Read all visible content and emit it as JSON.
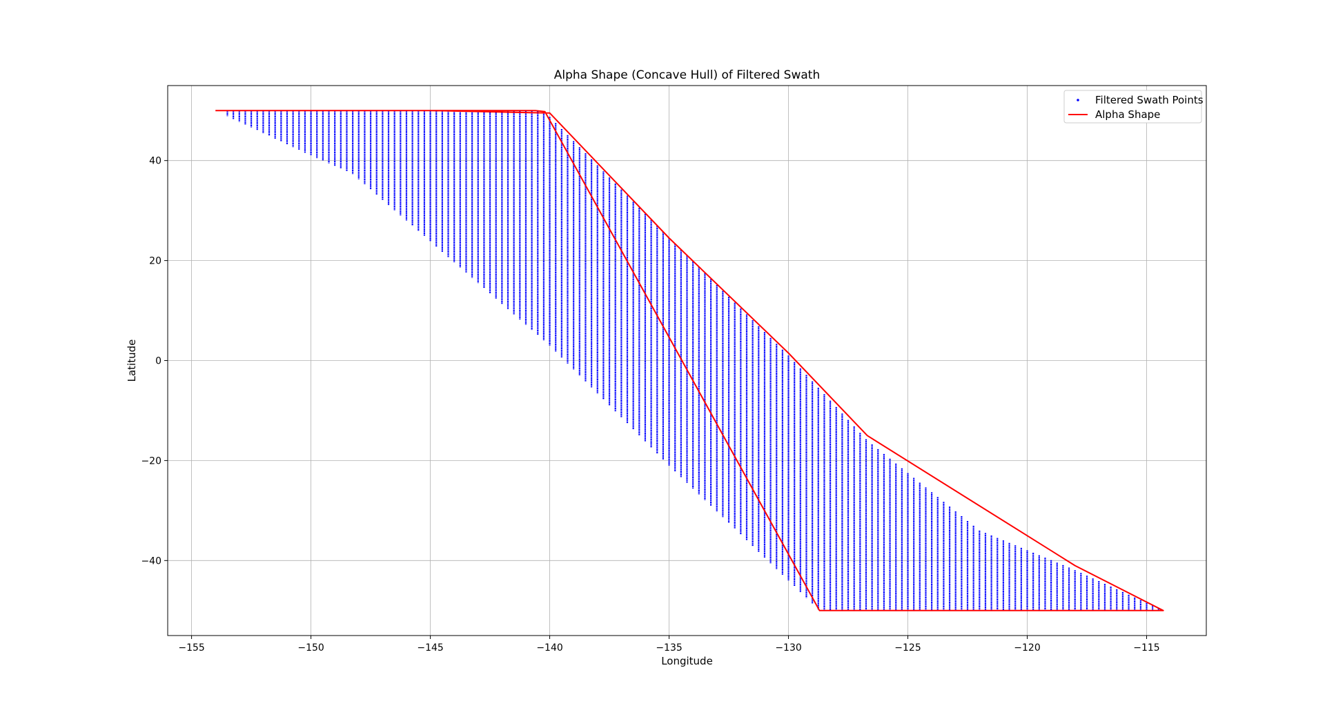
{
  "chart_data": {
    "type": "scatter",
    "title": "Alpha Shape (Concave Hull) of Filtered Swath",
    "xlabel": "Longitude",
    "ylabel": "Latitude",
    "xlim": [
      -156,
      -112.5
    ],
    "ylim": [
      -55,
      55
    ],
    "xticks": [
      -155,
      -150,
      -145,
      -140,
      -135,
      -130,
      -125,
      -120,
      -115
    ],
    "yticks": [
      -40,
      -20,
      0,
      20,
      40
    ],
    "xtick_labels": [
      "−155",
      "−150",
      "−145",
      "−140",
      "−135",
      "−130",
      "−125",
      "−120",
      "−115"
    ],
    "ytick_labels": [
      "−40",
      "−20",
      "0",
      "20",
      "40"
    ],
    "grid": true,
    "legend_position": "top-right",
    "series": [
      {
        "name": "Filtered Swath Points",
        "kind": "scatter",
        "color": "#0000ff",
        "x_start": -153.5,
        "x_end": -114.5,
        "x_step": 0.25,
        "bounds_note": "points fill the region between the upper and lower hull edges at each longitude"
      },
      {
        "name": "Alpha Shape",
        "kind": "line",
        "color": "#ff0000",
        "x": [
          -154,
          -148,
          -146.5,
          -140.6,
          -140.2,
          -128.7,
          -114.3,
          -118,
          -126.7,
          -130,
          -135,
          -140,
          -145,
          -147.3,
          -148,
          -150,
          -154
        ],
        "y": [
          50,
          50,
          50,
          50,
          49.8,
          -50,
          -50,
          -41,
          -15,
          1.5,
          24.5,
          49.5,
          50,
          50,
          50,
          50,
          50
        ]
      }
    ],
    "upper_edge": {
      "x": [
        -154,
        -140.6,
        -140.2,
        -135,
        -130,
        -126.7,
        -122,
        -118.2,
        -114.3
      ],
      "y": [
        50,
        50,
        49.7,
        24.5,
        1,
        -16,
        -34,
        -41.5,
        -50
      ]
    },
    "lower_edge": {
      "x": [
        -154,
        -150,
        -148.3,
        -146,
        -140,
        -135,
        -130,
        -128.7,
        -114.3
      ],
      "y": [
        50,
        41,
        37.5,
        28,
        3,
        -21,
        -44,
        -50,
        -50
      ]
    }
  }
}
